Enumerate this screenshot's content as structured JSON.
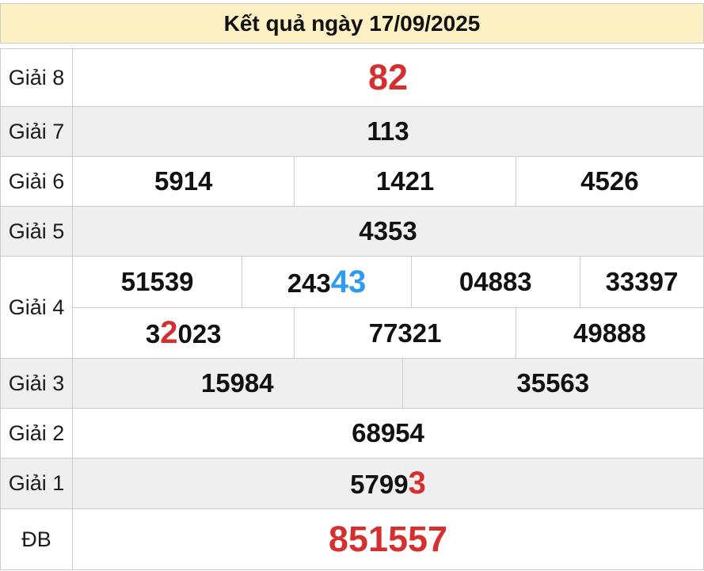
{
  "header": {
    "title": "Kết quả ngày 17/09/2025"
  },
  "colors": {
    "header_bg": "#fdf0c2",
    "alt_row_bg": "#efefef",
    "border": "#cccccc",
    "number_red": "#d3302f",
    "number_blue": "#2e9bf0"
  },
  "rows": [
    {
      "label": "Giải 8",
      "lines": [
        [
          {
            "pre": "",
            "hl": "82",
            "post": ""
          }
        ]
      ]
    },
    {
      "label": "Giải 7",
      "lines": [
        [
          {
            "pre": "113",
            "hl": "",
            "post": ""
          }
        ]
      ]
    },
    {
      "label": "Giải 6",
      "lines": [
        [
          {
            "pre": "5914",
            "hl": "",
            "post": ""
          },
          {
            "pre": "1421",
            "hl": "",
            "post": ""
          },
          {
            "pre": "4526",
            "hl": "",
            "post": ""
          }
        ]
      ]
    },
    {
      "label": "Giải 5",
      "lines": [
        [
          {
            "pre": "4353",
            "hl": "",
            "post": ""
          }
        ]
      ]
    },
    {
      "label": "Giải 4",
      "lines": [
        [
          {
            "pre": "51539",
            "hl": "",
            "post": ""
          },
          {
            "pre": "243",
            "hl": "43",
            "post": ""
          },
          {
            "pre": "04883",
            "hl": "",
            "post": ""
          },
          {
            "pre": "33397",
            "hl": "",
            "post": ""
          }
        ],
        [
          {
            "pre": "3",
            "hl": "2",
            "post": "023"
          },
          {
            "pre": "77321",
            "hl": "",
            "post": ""
          },
          {
            "pre": "49888",
            "hl": "",
            "post": ""
          }
        ]
      ]
    },
    {
      "label": "Giải 3",
      "lines": [
        [
          {
            "pre": "15984",
            "hl": "",
            "post": ""
          },
          {
            "pre": "35563",
            "hl": "",
            "post": ""
          }
        ]
      ]
    },
    {
      "label": "Giải 2",
      "lines": [
        [
          {
            "pre": "68954",
            "hl": "",
            "post": ""
          }
        ]
      ]
    },
    {
      "label": "Giải 1",
      "lines": [
        [
          {
            "pre": "5799",
            "hl": "3",
            "post": ""
          }
        ]
      ]
    },
    {
      "label": "ĐB",
      "lines": [
        [
          {
            "pre": "851557",
            "hl": "",
            "post": ""
          }
        ]
      ]
    }
  ]
}
